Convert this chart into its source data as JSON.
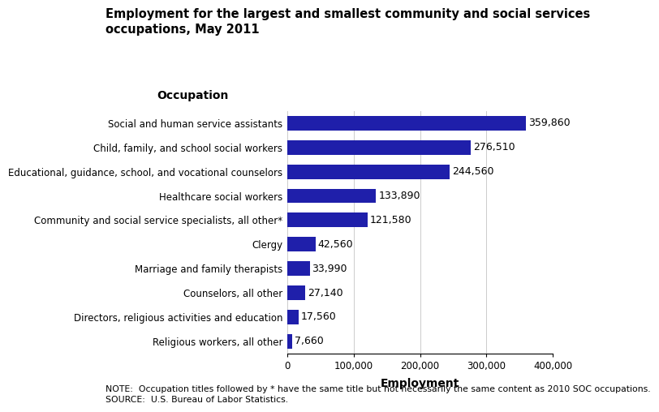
{
  "title": "Employment for the largest and smallest community and social services\noccupations, May 2011",
  "xlabel": "Employment",
  "ylabel": "Occupation",
  "categories": [
    "Religious workers, all other",
    "Directors, religious activities and education",
    "Counselors, all other",
    "Marriage and family therapists",
    "Clergy",
    "Community and social service specialists, all other*",
    "Healthcare social workers",
    "Educational, guidance, school, and vocational counselors",
    "Child, family, and school social workers",
    "Social and human service assistants"
  ],
  "values": [
    7660,
    17560,
    27140,
    33990,
    42560,
    121580,
    133890,
    244560,
    276510,
    359860
  ],
  "bar_color": "#1f1faa",
  "xlim": [
    0,
    400000
  ],
  "xticks": [
    0,
    100000,
    200000,
    300000,
    400000
  ],
  "xticklabels": [
    "0",
    "100,000",
    "200,000",
    "300,000",
    "400,000"
  ],
  "bar_labels": [
    "7,660",
    "17,560",
    "27,140",
    "33,990",
    "42,560",
    "121,580",
    "133,890",
    "244,560",
    "276,510",
    "359,860"
  ],
  "note": "NOTE:  Occupation titles followed by * have the same title but not necessarily the same content as 2010 SOC occupations.\nSOURCE:  U.S. Bureau of Labor Statistics.",
  "title_fontsize": 10.5,
  "axis_label_fontsize": 9,
  "tick_fontsize": 8.5,
  "note_fontsize": 7.8,
  "ylabel_fontsize": 10
}
